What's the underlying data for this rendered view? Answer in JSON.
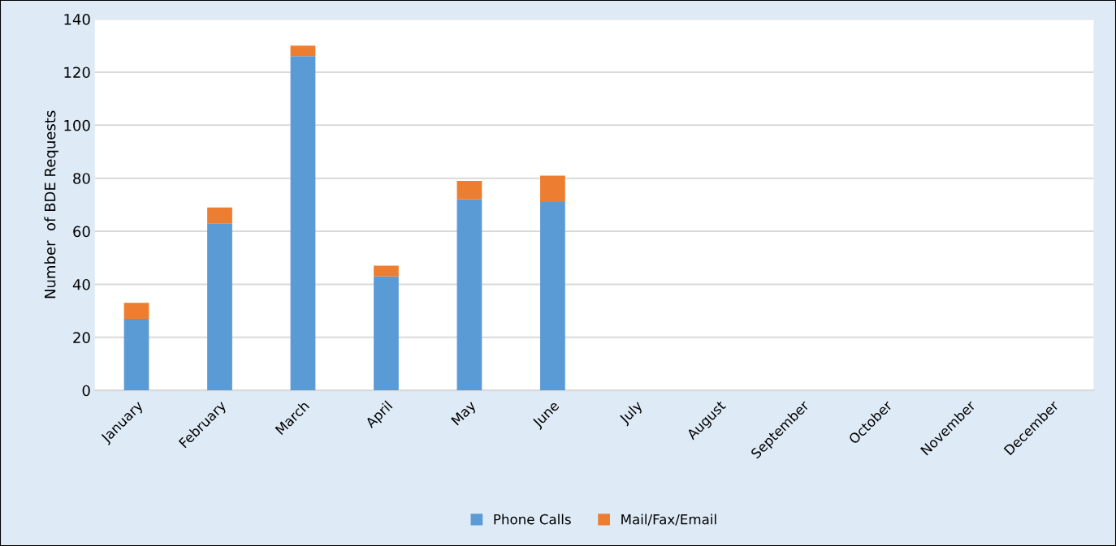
{
  "chart_data": {
    "type": "bar",
    "stacked": true,
    "ylabel": "Number  of BDE Requests",
    "categories": [
      "January",
      "February",
      "March",
      "April",
      "May",
      "June",
      "July",
      "August",
      "September",
      "October",
      "November",
      "December"
    ],
    "series": [
      {
        "name": "Phone Calls",
        "color": "#5b9bd5",
        "values": [
          27,
          63,
          126,
          43,
          72,
          71,
          null,
          null,
          null,
          null,
          null,
          null
        ]
      },
      {
        "name": "Mail/Fax/Email",
        "color": "#ed7d31",
        "values": [
          6,
          6,
          4,
          4,
          7,
          10,
          null,
          null,
          null,
          null,
          null,
          null
        ]
      }
    ],
    "ylim": [
      0,
      140
    ],
    "yticks": [
      0,
      20,
      40,
      60,
      80,
      100,
      120,
      140
    ],
    "grid": "y",
    "legend": "bottom"
  }
}
